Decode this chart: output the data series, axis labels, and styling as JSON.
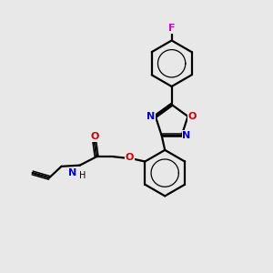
{
  "background_color": "#e8e8e8",
  "bond_color": "#000000",
  "N_color": "#0000cc",
  "O_color": "#cc0000",
  "F_color": "#cc00cc",
  "figsize": [
    3.0,
    3.0
  ],
  "dpi": 100,
  "xlim": [
    0,
    10
  ],
  "ylim": [
    0,
    10
  ]
}
